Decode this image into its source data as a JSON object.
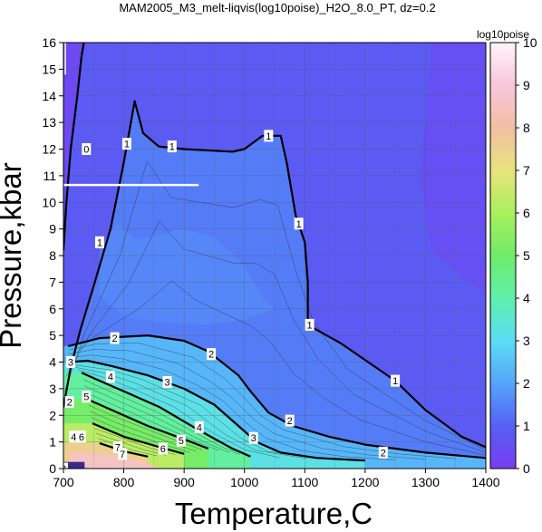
{
  "chart_data": {
    "type": "heatmap",
    "title": "MAM2005_M3_melt-liqvis(log10poise)_H2O_8.0_PT, dz=0.2",
    "xlabel": "Temperature,C",
    "ylabel": "Pressure,kbar",
    "xlim": [
      700,
      1400
    ],
    "ylim": [
      0,
      16
    ],
    "x_ticks": [
      700,
      800,
      900,
      1000,
      1100,
      1200,
      1300,
      1400
    ],
    "y_ticks": [
      0,
      1,
      2,
      3,
      4,
      5,
      6,
      7,
      8,
      9,
      10,
      11,
      12,
      13,
      14,
      15,
      16
    ],
    "grid": true,
    "colorbar": {
      "title": "log10poise",
      "range": [
        0,
        10
      ],
      "ticks": [
        0,
        1,
        2,
        3,
        4,
        5,
        6,
        7,
        8,
        9,
        10
      ],
      "stops": [
        {
          "v": 0,
          "color": "#7a3cf0"
        },
        {
          "v": 1,
          "color": "#5560f5"
        },
        {
          "v": 2,
          "color": "#55a5fa"
        },
        {
          "v": 3,
          "color": "#5cdcf5"
        },
        {
          "v": 4,
          "color": "#5ef0ac"
        },
        {
          "v": 5,
          "color": "#70ec6a"
        },
        {
          "v": 6,
          "color": "#a8f05c"
        },
        {
          "v": 7,
          "color": "#e8e47c"
        },
        {
          "v": 8,
          "color": "#f2bfa2"
        },
        {
          "v": 9,
          "color": "#f8c6dc"
        },
        {
          "v": 10,
          "color": "#fff4fb"
        }
      ]
    },
    "contours": [
      {
        "level": "0",
        "points": [
          [
            700,
            8.2
          ],
          [
            705,
            10.0
          ],
          [
            712,
            12.0
          ],
          [
            723,
            14.0
          ],
          [
            730,
            15.5
          ],
          [
            734,
            16.0
          ]
        ]
      },
      {
        "level": "1",
        "points": [
          [
            700,
            2.3
          ],
          [
            712,
            3.8
          ],
          [
            728,
            5.2
          ],
          [
            752,
            7.0
          ],
          [
            778,
            9.0
          ],
          [
            800,
            11.5
          ],
          [
            818,
            13.8
          ],
          [
            832,
            12.6
          ],
          [
            858,
            12.1
          ],
          [
            900,
            12.0
          ],
          [
            980,
            11.9
          ],
          [
            1000,
            12.0
          ],
          [
            1030,
            12.5
          ],
          [
            1060,
            12.5
          ],
          [
            1070,
            11.5
          ],
          [
            1085,
            9.5
          ],
          [
            1100,
            8.5
          ],
          [
            1105,
            7.0
          ],
          [
            1105,
            5.4
          ],
          [
            1160,
            4.7
          ],
          [
            1250,
            3.3
          ],
          [
            1300,
            2.2
          ],
          [
            1360,
            1.2
          ],
          [
            1400,
            0.8
          ]
        ]
      },
      {
        "level": "2",
        "points": [
          [
            708,
            4.6
          ],
          [
            760,
            4.9
          ],
          [
            840,
            5.0
          ],
          [
            900,
            4.8
          ],
          [
            940,
            4.4
          ],
          [
            990,
            3.5
          ],
          [
            1010,
            2.9
          ],
          [
            1040,
            2.1
          ],
          [
            1080,
            1.6
          ],
          [
            1140,
            1.2
          ],
          [
            1200,
            0.9
          ],
          [
            1300,
            0.6
          ],
          [
            1400,
            0.4
          ]
        ]
      },
      {
        "level": "3",
        "points": [
          [
            710,
            4.0
          ],
          [
            740,
            4.05
          ],
          [
            780,
            3.85
          ],
          [
            840,
            3.5
          ],
          [
            900,
            3.0
          ],
          [
            950,
            2.4
          ],
          [
            990,
            1.6
          ],
          [
            1020,
            1.0
          ],
          [
            1060,
            0.6
          ],
          [
            1120,
            0.4
          ],
          [
            1200,
            0.3
          ]
        ]
      },
      {
        "level": "4",
        "points": [
          [
            730,
            3.6
          ],
          [
            760,
            3.3
          ],
          [
            800,
            2.9
          ],
          [
            860,
            2.3
          ],
          [
            920,
            1.5
          ],
          [
            980,
            0.75
          ],
          [
            1010,
            0.45
          ]
        ]
      },
      {
        "level": "5",
        "points": [
          [
            740,
            2.6
          ],
          [
            780,
            2.2
          ],
          [
            840,
            1.6
          ],
          [
            900,
            1.1
          ],
          [
            940,
            0.75
          ]
        ]
      },
      {
        "level": "6",
        "points": [
          [
            748,
            1.7
          ],
          [
            800,
            1.2
          ],
          [
            860,
            0.8
          ],
          [
            900,
            0.55
          ]
        ]
      },
      {
        "level": "7",
        "points": [
          [
            760,
            0.95
          ],
          [
            800,
            0.65
          ],
          [
            840,
            0.45
          ]
        ]
      }
    ],
    "contour_labels": [
      {
        "text": "0",
        "x": 700,
        "y": 0
      },
      {
        "text": "0",
        "x": 738,
        "y": 12.0
      },
      {
        "text": "1",
        "x": 760,
        "y": 8.5
      },
      {
        "text": "1",
        "x": 805,
        "y": 12.2
      },
      {
        "text": "1",
        "x": 880,
        "y": 12.1
      },
      {
        "text": "1",
        "x": 1040,
        "y": 12.5
      },
      {
        "text": "1",
        "x": 1090,
        "y": 9.2
      },
      {
        "text": "1",
        "x": 1108,
        "y": 5.4
      },
      {
        "text": "1",
        "x": 1250,
        "y": 3.3
      },
      {
        "text": "2",
        "x": 785,
        "y": 4.9
      },
      {
        "text": "2",
        "x": 945,
        "y": 4.3
      },
      {
        "text": "2",
        "x": 1075,
        "y": 1.8
      },
      {
        "text": "2",
        "x": 1230,
        "y": 0.6
      },
      {
        "text": "2",
        "x": 710,
        "y": 2.5
      },
      {
        "text": "3",
        "x": 712,
        "y": 4.0
      },
      {
        "text": "3",
        "x": 872,
        "y": 3.25
      },
      {
        "text": "3",
        "x": 1015,
        "y": 1.15
      },
      {
        "text": "4",
        "x": 778,
        "y": 3.45
      },
      {
        "text": "4",
        "x": 925,
        "y": 1.55
      },
      {
        "text": "4",
        "x": 717,
        "y": 1.2
      },
      {
        "text": "5",
        "x": 738,
        "y": 2.7
      },
      {
        "text": "5",
        "x": 895,
        "y": 1.05
      },
      {
        "text": "6",
        "x": 730,
        "y": 1.2
      },
      {
        "text": "6",
        "x": 865,
        "y": 0.75
      },
      {
        "text": "7",
        "x": 790,
        "y": 0.8
      },
      {
        "text": "7",
        "x": 798,
        "y": 0.55
      }
    ],
    "white_line": {
      "x": [
        700,
        924
      ],
      "y": 10.65
    }
  }
}
